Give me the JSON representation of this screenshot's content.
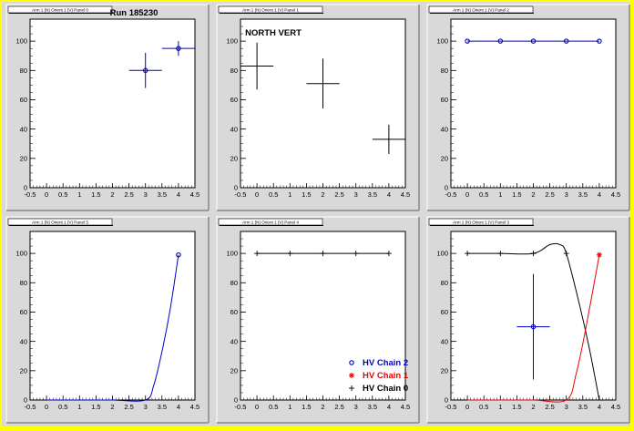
{
  "canvas": {
    "background": "#ffff00",
    "pad_fill": "#d9d9d9",
    "plot_fill": "#ffffff"
  },
  "chart_data": [
    {
      "pad_label": "Arm 1 (N) Orient 1 (V) Panel 0",
      "title": "Run 185230",
      "type": "scatter",
      "xlim": [
        -0.5,
        4.5
      ],
      "ylim": [
        0,
        115
      ],
      "x_ticks": [
        "-0.5",
        "0",
        "0.5",
        "1",
        "1.5",
        "2",
        "2.5",
        "3",
        "3.5",
        "4",
        "4.5"
      ],
      "y_ticks": [
        "0",
        "20",
        "40",
        "60",
        "80",
        "100"
      ],
      "series": [
        {
          "color": "#0000cc",
          "marker": "circle",
          "style": "errorbar",
          "points": [
            {
              "x": 3,
              "y": 80,
              "xerr": 0.5,
              "yerr": 12
            },
            {
              "x": 4,
              "y": 95,
              "xerr": 0.5,
              "yerr": 5
            }
          ]
        }
      ]
    },
    {
      "pad_label": "Arm 1 (N) Orient 1 (V) Panel 1",
      "title": "NORTH VERT",
      "type": "scatter",
      "xlim": [
        -0.5,
        4.5
      ],
      "ylim": [
        0,
        115
      ],
      "x_ticks": [
        "-0.5",
        "0",
        "0.5",
        "1",
        "1.5",
        "2",
        "2.5",
        "3",
        "3.5",
        "4",
        "4.5"
      ],
      "y_ticks": [
        "0",
        "20",
        "40",
        "60",
        "80",
        "100"
      ],
      "series": [
        {
          "color": "#000000",
          "marker": "none",
          "style": "errorbar",
          "points": [
            {
              "x": 0,
              "y": 83,
              "xerr": 0.5,
              "yerr": 16
            },
            {
              "x": 2,
              "y": 71,
              "xerr": 0.5,
              "yerr": 17
            },
            {
              "x": 4,
              "y": 33,
              "xerr": 0.5,
              "yerr": 10
            }
          ]
        }
      ]
    },
    {
      "pad_label": "Arm 1 (N) Orient 1 (V) Panel 2",
      "title": "",
      "type": "line",
      "xlim": [
        -0.5,
        4.5
      ],
      "ylim": [
        0,
        115
      ],
      "x_ticks": [
        "-0.5",
        "0",
        "0.5",
        "1",
        "1.5",
        "2",
        "2.5",
        "3",
        "3.5",
        "4",
        "4.5"
      ],
      "y_ticks": [
        "0",
        "20",
        "40",
        "60",
        "80",
        "100"
      ],
      "series": [
        {
          "color": "#0000cc",
          "marker": "circle",
          "style": "line",
          "points": [
            {
              "x": 0,
              "y": 100
            },
            {
              "x": 1,
              "y": 100
            },
            {
              "x": 2,
              "y": 100
            },
            {
              "x": 3,
              "y": 100
            },
            {
              "x": 4,
              "y": 100
            }
          ]
        }
      ]
    },
    {
      "pad_label": "Arm 1 (N) Orient 1 (V) Panel 5",
      "title": "",
      "type": "line",
      "xlim": [
        -0.5,
        4.5
      ],
      "ylim": [
        0,
        115
      ],
      "x_ticks": [
        "-0.5",
        "0",
        "0.5",
        "1",
        "1.5",
        "2",
        "2.5",
        "3",
        "3.5",
        "4",
        "4.5"
      ],
      "y_ticks": [
        "0",
        "20",
        "40",
        "60",
        "80",
        "100"
      ],
      "series": [
        {
          "color": "#0000cc",
          "marker": "circle",
          "style": "curve",
          "points": [
            {
              "x": 0,
              "y": 0
            },
            {
              "x": 1,
              "y": 0
            },
            {
              "x": 2,
              "y": 0
            },
            {
              "x": 3,
              "y": 0
            },
            {
              "x": 3.25,
              "y": 10
            },
            {
              "x": 3.5,
              "y": 33
            },
            {
              "x": 3.75,
              "y": 62
            },
            {
              "x": 4,
              "y": 99
            }
          ],
          "markers_at": [
            {
              "x": 4,
              "y": 99
            }
          ]
        }
      ]
    },
    {
      "pad_label": "Arm 1 (N) Orient 1 (V) Panel 4",
      "title": "",
      "type": "line",
      "xlim": [
        -0.5,
        4.5
      ],
      "ylim": [
        0,
        115
      ],
      "x_ticks": [
        "-0.5",
        "0",
        "0.5",
        "1",
        "1.5",
        "2",
        "2.5",
        "3",
        "3.5",
        "4",
        "4.5"
      ],
      "y_ticks": [
        "0",
        "20",
        "40",
        "60",
        "80",
        "100"
      ],
      "series": [
        {
          "color": "#000000",
          "marker": "plus",
          "style": "line",
          "points": [
            {
              "x": 0,
              "y": 100
            },
            {
              "x": 1,
              "y": 100
            },
            {
              "x": 2,
              "y": 100
            },
            {
              "x": 3,
              "y": 100
            },
            {
              "x": 4,
              "y": 100
            }
          ]
        }
      ],
      "legend": {
        "placement": "bottom-right",
        "entries": [
          {
            "label": "HV Chain 2",
            "color": "#0000cc",
            "marker": "circle"
          },
          {
            "label": "HV Chain 1",
            "color": "#ee0000",
            "marker": "star"
          },
          {
            "label": "HV Chain 0",
            "color": "#000000",
            "marker": "plus"
          }
        ]
      }
    },
    {
      "pad_label": "Arm 1 (N) Orient 1 (V) Panel 3",
      "title": "",
      "type": "line",
      "xlim": [
        -0.5,
        4.5
      ],
      "ylim": [
        0,
        115
      ],
      "x_ticks": [
        "-0.5",
        "0",
        "0.5",
        "1",
        "1.5",
        "2",
        "2.5",
        "3",
        "3.5",
        "4",
        "4.5"
      ],
      "y_ticks": [
        "0",
        "20",
        "40",
        "60",
        "80",
        "100"
      ],
      "series": [
        {
          "color": "#000000",
          "marker": "plus",
          "style": "curve",
          "points": [
            {
              "x": 0,
              "y": 100
            },
            {
              "x": 1,
              "y": 100
            },
            {
              "x": 2,
              "y": 100
            },
            {
              "x": 2.5,
              "y": 106
            },
            {
              "x": 2.8,
              "y": 106
            },
            {
              "x": 3,
              "y": 100
            },
            {
              "x": 3.4,
              "y": 65
            },
            {
              "x": 3.7,
              "y": 35
            },
            {
              "x": 4,
              "y": 0
            }
          ],
          "markers_at": [
            {
              "x": 0,
              "y": 100
            },
            {
              "x": 1,
              "y": 100
            },
            {
              "x": 2,
              "y": 100
            },
            {
              "x": 3,
              "y": 100
            }
          ]
        },
        {
          "color": "#ee0000",
          "marker": "star",
          "style": "curve",
          "points": [
            {
              "x": 0,
              "y": 0
            },
            {
              "x": 1,
              "y": 0
            },
            {
              "x": 2,
              "y": 0
            },
            {
              "x": 3,
              "y": 0
            },
            {
              "x": 3.3,
              "y": 18
            },
            {
              "x": 3.6,
              "y": 50
            },
            {
              "x": 4,
              "y": 99
            }
          ],
          "markers_at": [
            {
              "x": 4,
              "y": 99
            }
          ]
        },
        {
          "color": "#0000cc",
          "marker": "circle",
          "style": "errorbar",
          "points": [
            {
              "x": 2,
              "y": 50,
              "xerr": 0.5,
              "yerr": 36
            }
          ]
        }
      ]
    }
  ]
}
